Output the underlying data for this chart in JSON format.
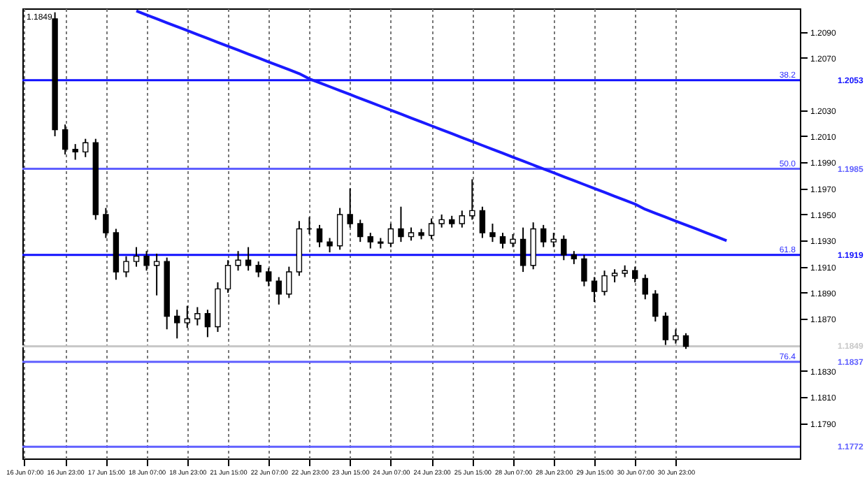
{
  "chart_data": {
    "type": "candlestick",
    "annotations": [
      "1.1849",
      {
        "text": "38.2",
        "y": 1.2053
      },
      {
        "text": "50.0",
        "y": 1.1985
      },
      {
        "text": "61.8",
        "y": 1.1919
      },
      {
        "text": "76.4",
        "y": 1.1837
      }
    ],
    "categories": [
      "16 Jun 07:00",
      null,
      null,
      null,
      "16 Jun 23:00",
      null,
      null,
      null,
      "17 Jun 15:00",
      null,
      null,
      null,
      "18 Jun 07:00",
      null,
      null,
      null,
      "18 Jun 23:00",
      null,
      null,
      null,
      "21 Jun 15:00",
      null,
      null,
      null,
      "22 Jun 07:00",
      null,
      null,
      null,
      "22 Jun 23:00",
      null,
      null,
      null,
      "23 Jun 15:00",
      null,
      null,
      null,
      "24 Jun 07:00",
      null,
      null,
      null,
      "24 Jun 23:00",
      null,
      null,
      null,
      "25 Jun 15:00",
      null,
      null,
      null,
      "28 Jun 07:00",
      null,
      null,
      null,
      "28 Jun 23:00",
      null,
      null,
      null,
      "29 Jun 15:00",
      null,
      null,
      null,
      "30 Jun 07:00",
      null,
      null,
      null,
      "30 Jun 23:00",
      null,
      null,
      null,
      null,
      null,
      null,
      null,
      null,
      null,
      null,
      null,
      null
    ],
    "ohlc": [
      null,
      null,
      null,
      [
        1.21,
        1.2105,
        1.201,
        1.2015
      ],
      [
        1.2015,
        1.2019,
        1.1996,
        1.2
      ],
      [
        1.2,
        1.2004,
        1.1992,
        1.1998
      ],
      [
        1.1998,
        1.2008,
        1.1994,
        1.2005
      ],
      [
        1.2005,
        1.2008,
        1.1946,
        1.195
      ],
      [
        1.195,
        1.1955,
        1.1932,
        1.1936
      ],
      [
        1.1936,
        1.1939,
        1.19,
        1.1906
      ],
      [
        1.1906,
        1.1918,
        1.1902,
        1.1914
      ],
      [
        1.1914,
        1.1925,
        1.191,
        1.1918
      ],
      [
        1.1918,
        1.1922,
        1.1907,
        1.1911
      ],
      [
        1.1911,
        1.192,
        1.1888,
        1.1914
      ],
      [
        1.1914,
        1.1917,
        1.1862,
        1.1872
      ],
      [
        1.1872,
        1.1877,
        1.1855,
        1.1867
      ],
      [
        1.1867,
        1.188,
        1.1863,
        1.187
      ],
      [
        1.187,
        1.1879,
        1.1865,
        1.1874
      ],
      [
        1.1874,
        1.1877,
        1.1856,
        1.1864
      ],
      [
        1.1864,
        1.1898,
        1.186,
        1.1893
      ],
      [
        1.1893,
        1.1915,
        1.189,
        1.1911
      ],
      [
        1.1911,
        1.1922,
        1.1907,
        1.1915
      ],
      [
        1.1915,
        1.1925,
        1.1907,
        1.1911
      ],
      [
        1.1911,
        1.1914,
        1.1902,
        1.1906
      ],
      [
        1.1906,
        1.1909,
        1.1895,
        1.1899
      ],
      [
        1.1899,
        1.1902,
        1.1881,
        1.1889
      ],
      [
        1.1889,
        1.191,
        1.1886,
        1.1906
      ],
      [
        1.1906,
        1.1945,
        1.1903,
        1.1939
      ],
      [
        1.1939,
        1.1948,
        1.1935,
        1.1939
      ],
      [
        1.1939,
        1.1942,
        1.1925,
        1.1929
      ],
      [
        1.1929,
        1.1932,
        1.1921,
        1.1926
      ],
      [
        1.1926,
        1.1955,
        1.1923,
        1.195
      ],
      [
        1.195,
        1.197,
        1.194,
        1.1943
      ],
      [
        1.1943,
        1.1946,
        1.1929,
        1.1933
      ],
      [
        1.1933,
        1.1936,
        1.1924,
        1.1929
      ],
      [
        1.1929,
        1.1932,
        1.1924,
        1.1928
      ],
      [
        1.1928,
        1.1943,
        1.1925,
        1.1939
      ],
      [
        1.1939,
        1.1956,
        1.1929,
        1.1933
      ],
      [
        1.1933,
        1.194,
        1.193,
        1.1936
      ],
      [
        1.1936,
        1.1939,
        1.1931,
        1.1934
      ],
      [
        1.1934,
        1.1947,
        1.1931,
        1.1943
      ],
      [
        1.1943,
        1.195,
        1.194,
        1.1946
      ],
      [
        1.1946,
        1.1949,
        1.194,
        1.1943
      ],
      [
        1.1943,
        1.1953,
        1.194,
        1.1949
      ],
      [
        1.1949,
        1.1977,
        1.1946,
        1.1953
      ],
      [
        1.1953,
        1.1956,
        1.1932,
        1.1936
      ],
      [
        1.1936,
        1.1943,
        1.1929,
        1.1933
      ],
      [
        1.1933,
        1.1936,
        1.1924,
        1.1928
      ],
      [
        1.1928,
        1.1935,
        1.1925,
        1.1931
      ],
      [
        1.1931,
        1.194,
        1.1906,
        1.1911
      ],
      [
        1.1911,
        1.1944,
        1.1908,
        1.1939
      ],
      [
        1.1939,
        1.1942,
        1.1925,
        1.1929
      ],
      [
        1.1929,
        1.1936,
        1.1925,
        1.1931
      ],
      [
        1.1931,
        1.1934,
        1.1915,
        1.1919
      ],
      [
        1.1919,
        1.1922,
        1.1912,
        1.1916
      ],
      [
        1.1916,
        1.1919,
        1.1895,
        1.1899
      ],
      [
        1.1899,
        1.1902,
        1.1883,
        1.1891
      ],
      [
        1.1891,
        1.1907,
        1.1888,
        1.1903
      ],
      [
        1.1903,
        1.1908,
        1.1898,
        1.1905
      ],
      [
        1.1905,
        1.1911,
        1.1902,
        1.1907
      ],
      [
        1.1907,
        1.191,
        1.1898,
        1.1901
      ],
      [
        1.1901,
        1.1904,
        1.1885,
        1.1889
      ],
      [
        1.1889,
        1.1892,
        1.1868,
        1.1872
      ],
      [
        1.1872,
        1.1875,
        1.185,
        1.1854
      ],
      [
        1.1854,
        1.1862,
        1.1851,
        1.1857
      ],
      [
        1.1857,
        1.1859,
        1.1847,
        1.1849
      ],
      null,
      null,
      null,
      null,
      null,
      null,
      null,
      null,
      null,
      null,
      null
    ],
    "series": [
      {
        "type": "line",
        "color": "#1a1aff",
        "values": [
          null,
          null,
          null,
          null,
          null,
          null,
          null,
          null,
          null,
          null,
          null,
          1.2106,
          1.2103,
          1.21,
          1.2097,
          1.2094,
          1.2091,
          1.2088,
          1.2085,
          1.2082,
          1.2079,
          1.2076,
          1.2073,
          1.207,
          1.2067,
          1.2064,
          1.2061,
          1.2058,
          1.2054,
          1.2051,
          1.2048,
          1.2045,
          1.2042,
          1.2039,
          1.2036,
          1.2033,
          1.203,
          1.2027,
          1.2024,
          1.2021,
          1.2018,
          1.2015,
          1.2012,
          1.2009,
          1.2006,
          1.2003,
          1.2,
          1.1997,
          1.1994,
          1.1991,
          1.1988,
          1.1985,
          1.1982,
          1.1979,
          1.1976,
          1.1973,
          1.197,
          1.1967,
          1.1964,
          1.1961,
          1.1958,
          1.1954,
          1.1951,
          1.1948,
          1.1945,
          1.1942,
          1.1939,
          1.1936,
          1.1933,
          1.193,
          null,
          null,
          null,
          null,
          null,
          null,
          null
        ]
      }
    ],
    "ref_lines": [
      {
        "axis": "y",
        "value": 1.2053,
        "label": "1.2053",
        "color": "#1010ff"
      },
      {
        "axis": "y",
        "value": 1.1985,
        "label": "1.1985",
        "color": "#6060ff"
      },
      {
        "axis": "y",
        "value": 1.1919,
        "label": "1.1919",
        "color": "#1010ff"
      },
      {
        "axis": "y",
        "value": 1.1849,
        "label": "1.1849",
        "color": "#c8c8c8"
      },
      {
        "axis": "y",
        "value": 1.1837,
        "label": "1.1837",
        "color": "#6060ff"
      },
      {
        "axis": "y",
        "value": 1.1772,
        "label": "1.1772",
        "color": "#6060ff"
      }
    ],
    "ylim": [
      1.1763,
      1.2108
    ],
    "yticks": [
      {
        "value": 1.209,
        "label": "1.2090"
      },
      {
        "value": 1.207,
        "label": "1.2070"
      },
      {
        "value": 1.203,
        "label": "1.2030"
      },
      {
        "value": 1.201,
        "label": "1.2010"
      },
      {
        "value": 1.199,
        "label": "1.1990"
      },
      {
        "value": 1.197,
        "label": "1.1970"
      },
      {
        "value": 1.195,
        "label": "1.1950"
      },
      {
        "value": 1.193,
        "label": "1.1930"
      },
      {
        "value": 1.191,
        "label": "1.1910"
      },
      {
        "value": 1.189,
        "label": "1.1890"
      },
      {
        "value": 1.187,
        "label": "1.1870"
      },
      {
        "value": 1.183,
        "label": "1.1830"
      },
      {
        "value": 1.181,
        "label": "1.1810"
      },
      {
        "value": 1.179,
        "label": "1.1790"
      }
    ],
    "grid": "x"
  }
}
